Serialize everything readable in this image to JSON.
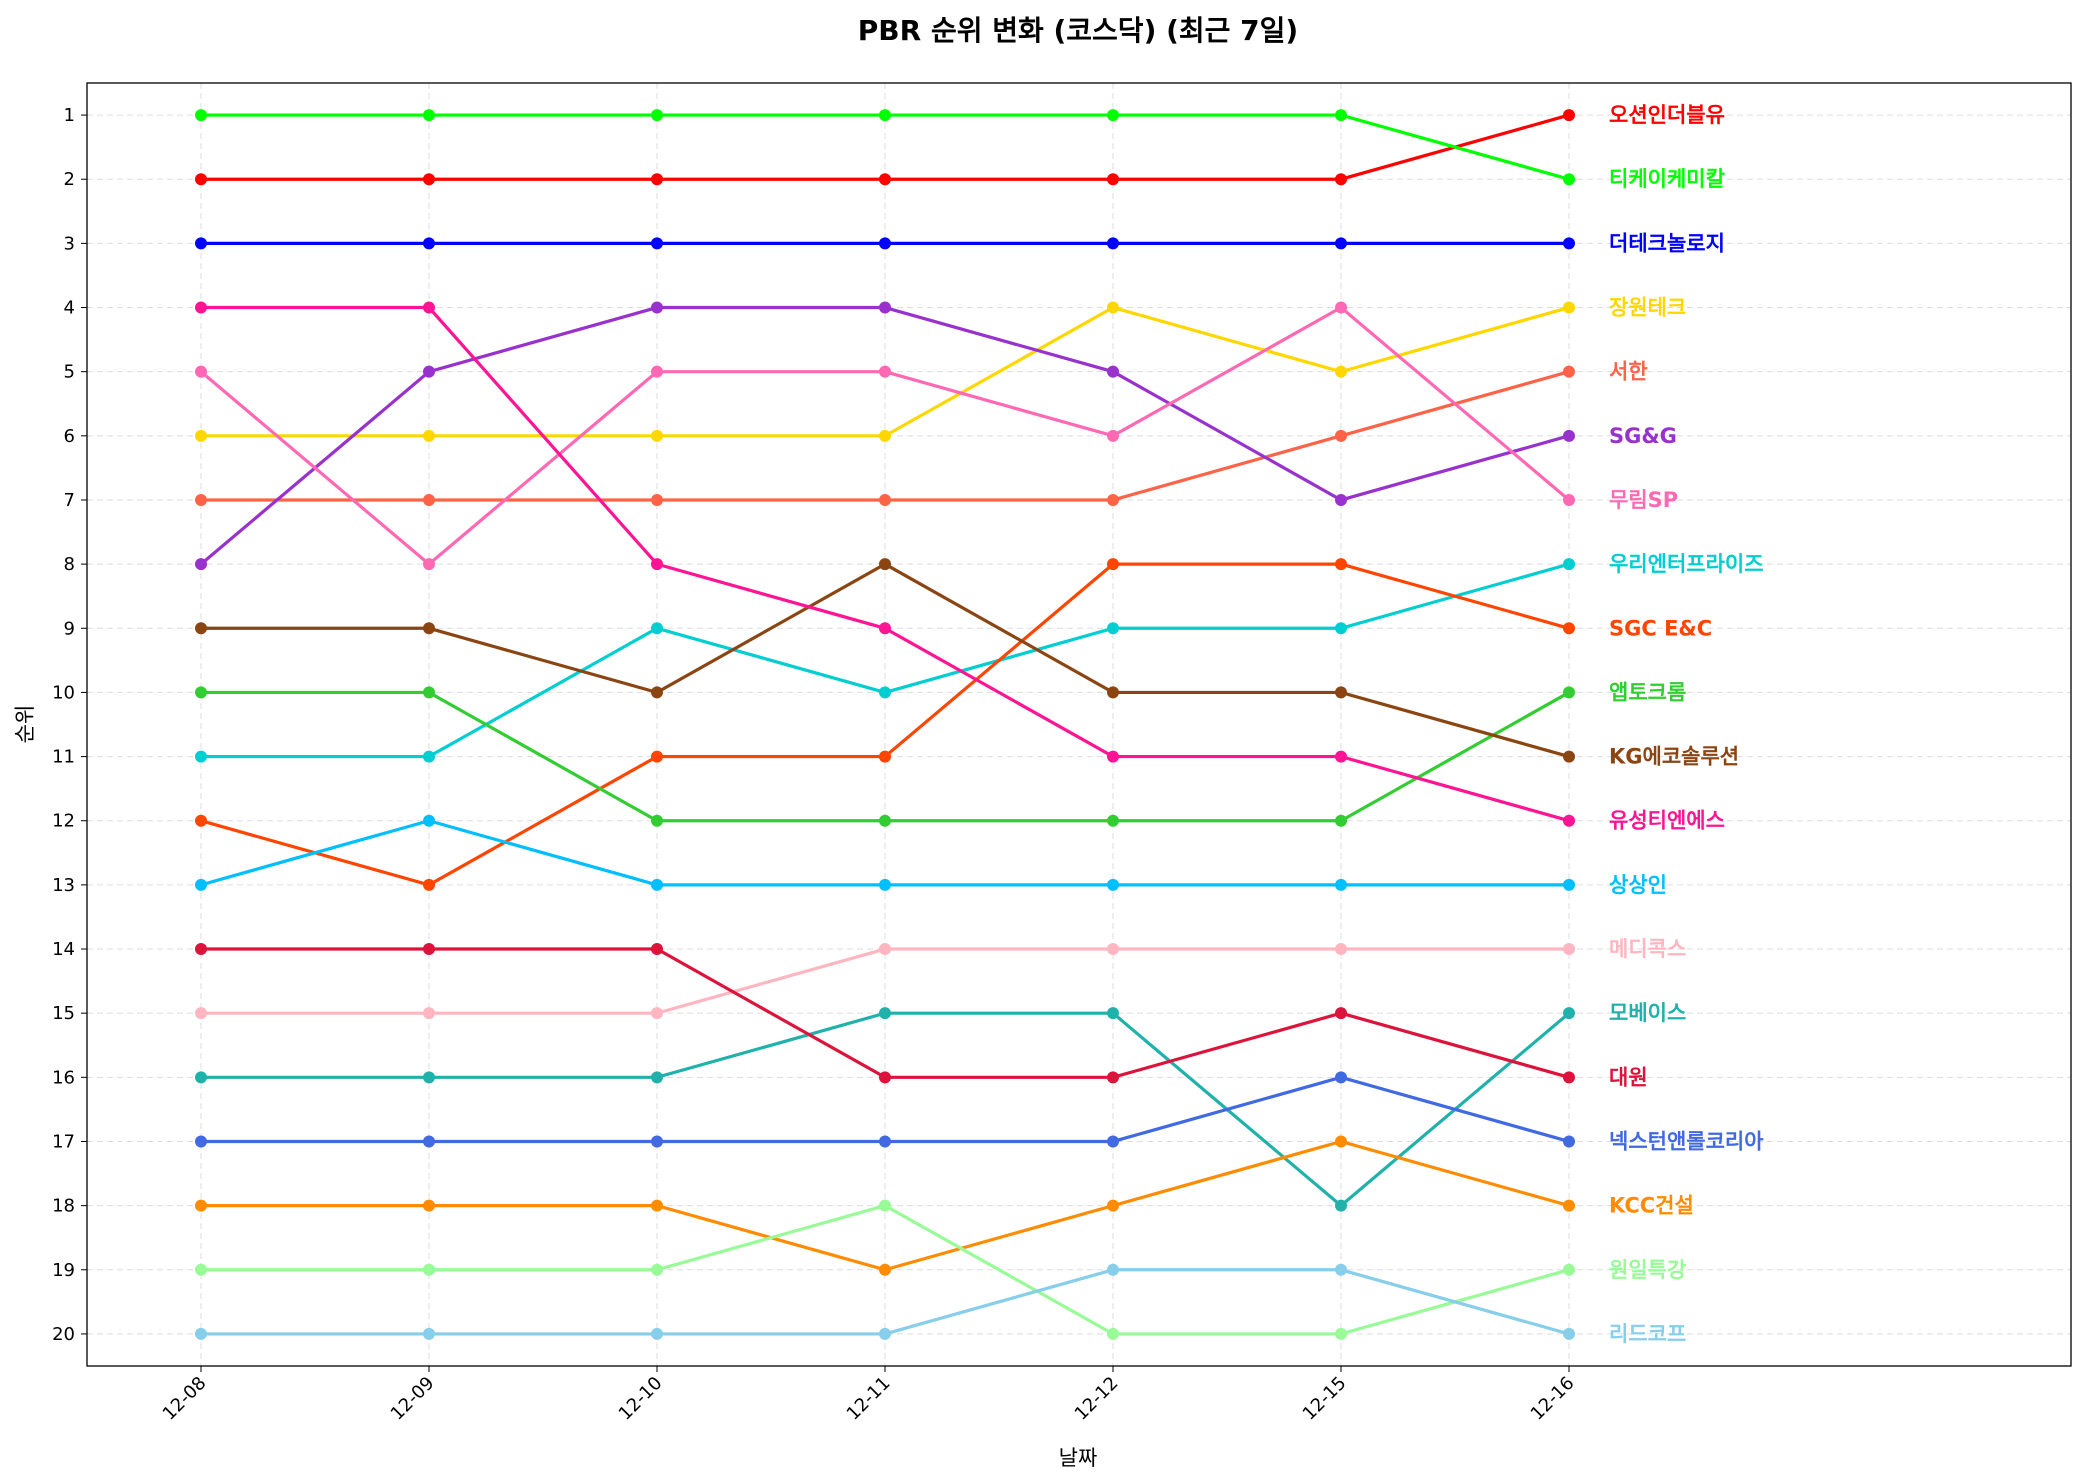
{
  "chart_data": {
    "type": "line",
    "title": "PBR 순위 변화 (코스닥) (최근 7일)",
    "xlabel": "날짜",
    "ylabel": "순위",
    "categories": [
      "12-08",
      "12-09",
      "12-10",
      "12-11",
      "12-12",
      "12-15",
      "12-16"
    ],
    "y_ticks": [
      1,
      2,
      3,
      4,
      5,
      6,
      7,
      8,
      9,
      10,
      11,
      12,
      13,
      14,
      15,
      16,
      17,
      18,
      19,
      20
    ],
    "ylim": [
      20.5,
      0.5
    ],
    "y_inverted": true,
    "grid": true,
    "legend": "end-of-line labels",
    "series": [
      {
        "name": "오션인더블유",
        "color": "#ff0000",
        "values": [
          2,
          2,
          2,
          2,
          2,
          2,
          1
        ]
      },
      {
        "name": "티케이케미칼",
        "color": "#00ff00",
        "values": [
          1,
          1,
          1,
          1,
          1,
          1,
          2
        ]
      },
      {
        "name": "더테크놀로지",
        "color": "#0000ff",
        "values": [
          3,
          3,
          3,
          3,
          3,
          3,
          3
        ]
      },
      {
        "name": "장원테크",
        "color": "#ffd700",
        "values": [
          6,
          6,
          6,
          6,
          4,
          5,
          4
        ]
      },
      {
        "name": "서한",
        "color": "#ff6347",
        "values": [
          7,
          7,
          7,
          7,
          7,
          6,
          5
        ]
      },
      {
        "name": "SG&G",
        "color": "#9932cc",
        "values": [
          8,
          5,
          4,
          4,
          5,
          7,
          6
        ]
      },
      {
        "name": "무림SP",
        "color": "#ff69b4",
        "values": [
          5,
          8,
          5,
          5,
          6,
          4,
          7
        ]
      },
      {
        "name": "우리엔터프라이즈",
        "color": "#00ced1",
        "values": [
          11,
          11,
          9,
          10,
          9,
          9,
          8
        ]
      },
      {
        "name": "SGC E&C",
        "color": "#ff4500",
        "values": [
          12,
          13,
          11,
          11,
          8,
          8,
          9
        ]
      },
      {
        "name": "앱토크롬",
        "color": "#32cd32",
        "values": [
          10,
          10,
          12,
          12,
          12,
          12,
          10
        ]
      },
      {
        "name": "KG에코솔루션",
        "color": "#8b4513",
        "values": [
          9,
          9,
          10,
          8,
          10,
          10,
          11
        ]
      },
      {
        "name": "유성티엔에스",
        "color": "#ff1493",
        "values": [
          4,
          4,
          8,
          9,
          11,
          11,
          12
        ]
      },
      {
        "name": "상상인",
        "color": "#00bfff",
        "values": [
          13,
          12,
          13,
          13,
          13,
          13,
          13
        ]
      },
      {
        "name": "메디콕스",
        "color": "#ffb6c1",
        "values": [
          15,
          15,
          15,
          14,
          14,
          14,
          14
        ]
      },
      {
        "name": "모베이스",
        "color": "#20b2aa",
        "values": [
          16,
          16,
          16,
          15,
          15,
          18,
          15
        ]
      },
      {
        "name": "대원",
        "color": "#dc143c",
        "values": [
          14,
          14,
          14,
          16,
          16,
          15,
          16
        ]
      },
      {
        "name": "넥스턴앤롤코리아",
        "color": "#4169e1",
        "values": [
          17,
          17,
          17,
          17,
          17,
          16,
          17
        ]
      },
      {
        "name": "KCC건설",
        "color": "#ff8c00",
        "values": [
          18,
          18,
          18,
          19,
          18,
          17,
          18
        ]
      },
      {
        "name": "원일특강",
        "color": "#98fb98",
        "values": [
          19,
          19,
          19,
          18,
          20,
          20,
          19
        ]
      },
      {
        "name": "리드코프",
        "color": "#87ceeb",
        "values": [
          20,
          20,
          20,
          20,
          19,
          19,
          20
        ]
      }
    ]
  }
}
